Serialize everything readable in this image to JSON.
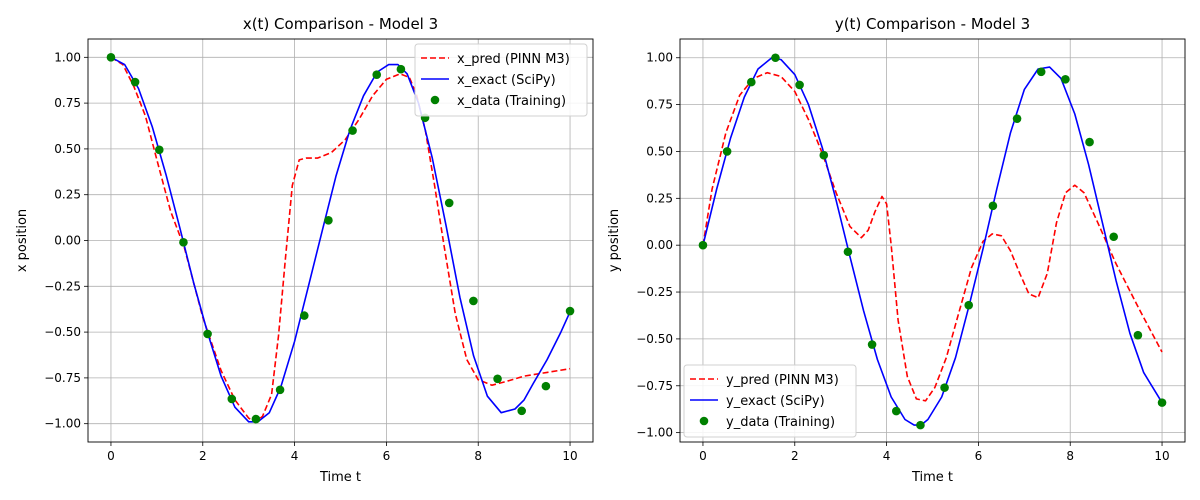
{
  "colors": {
    "pred": "#ff0000",
    "exact": "#0000ff",
    "data": "#008000",
    "grid": "#b0b0b0"
  },
  "chart_data": [
    {
      "type": "line",
      "title": "x(t) Comparison - Model 3",
      "xlabel": "Time t",
      "ylabel": "x position",
      "xlim": [
        -0.5,
        10.5
      ],
      "ylim": [
        -1.1,
        1.1
      ],
      "xticks": [
        0,
        2,
        4,
        6,
        8,
        10
      ],
      "yticks": [
        1.0,
        0.75,
        0.5,
        0.25,
        0.0,
        -0.25,
        -0.5,
        -0.75,
        -1.0
      ],
      "ytick_labels": [
        "1.00",
        "0.75",
        "0.50",
        "0.25",
        "0.00",
        "−0.25",
        "−0.50",
        "−0.75",
        "−1.00"
      ],
      "grid": true,
      "legend_position": "top-right",
      "series": [
        {
          "name": "x_pred (PINN M3)",
          "style": "dashed",
          "color_key": "pred",
          "x": [
            0,
            0.26,
            0.5,
            0.75,
            1.0,
            1.3,
            1.6,
            2.0,
            2.4,
            2.7,
            3.0,
            3.15,
            3.3,
            3.5,
            3.65,
            3.8,
            3.95,
            4.1,
            4.25,
            4.5,
            4.8,
            5.1,
            5.4,
            5.7,
            6.0,
            6.3,
            6.5,
            6.65,
            6.85,
            7.05,
            7.25,
            7.5,
            7.75,
            8.0,
            8.3,
            8.6,
            9.0,
            9.5,
            10.0
          ],
          "y": [
            1.0,
            0.96,
            0.84,
            0.68,
            0.44,
            0.16,
            -0.04,
            -0.42,
            -0.71,
            -0.87,
            -0.97,
            -0.99,
            -0.96,
            -0.84,
            -0.52,
            -0.1,
            0.3,
            0.44,
            0.45,
            0.45,
            0.48,
            0.55,
            0.66,
            0.79,
            0.88,
            0.91,
            0.89,
            0.8,
            0.6,
            0.3,
            -0.02,
            -0.4,
            -0.65,
            -0.76,
            -0.79,
            -0.77,
            -0.74,
            -0.72,
            -0.7
          ]
        },
        {
          "name": "x_exact (SciPy)",
          "style": "solid",
          "color_key": "exact",
          "x": [
            0,
            0.3,
            0.6,
            0.9,
            1.2,
            1.5,
            1.8,
            2.1,
            2.4,
            2.7,
            3.0,
            3.2,
            3.45,
            3.7,
            4.0,
            4.3,
            4.6,
            4.9,
            5.2,
            5.5,
            5.8,
            6.05,
            6.25,
            6.45,
            6.7,
            7.0,
            7.3,
            7.6,
            7.9,
            8.2,
            8.5,
            8.8,
            9.0,
            9.2,
            9.5,
            9.8,
            10.0
          ],
          "y": [
            1.0,
            0.96,
            0.83,
            0.62,
            0.36,
            0.07,
            -0.23,
            -0.5,
            -0.74,
            -0.91,
            -0.99,
            -0.99,
            -0.94,
            -0.8,
            -0.55,
            -0.25,
            0.05,
            0.35,
            0.6,
            0.79,
            0.92,
            0.96,
            0.96,
            0.91,
            0.75,
            0.45,
            0.08,
            -0.31,
            -0.63,
            -0.85,
            -0.94,
            -0.92,
            -0.87,
            -0.78,
            -0.65,
            -0.5,
            -0.39
          ]
        },
        {
          "name": "x_data (Training)",
          "style": "points",
          "color_key": "data",
          "x": [
            0.0,
            0.526,
            1.053,
            1.579,
            2.105,
            2.632,
            3.158,
            3.684,
            4.211,
            4.737,
            5.263,
            5.789,
            6.316,
            6.842,
            7.368,
            7.895,
            8.421,
            8.947,
            9.474,
            10.0
          ],
          "y": [
            1.0,
            0.865,
            0.495,
            -0.01,
            -0.51,
            -0.865,
            -0.975,
            -0.815,
            -0.41,
            0.11,
            0.6,
            0.905,
            0.935,
            0.67,
            0.205,
            -0.33,
            -0.755,
            -0.93,
            -0.795,
            -0.385
          ]
        }
      ]
    },
    {
      "type": "line",
      "title": "y(t) Comparison - Model 3",
      "xlabel": "Time t",
      "ylabel": "y position",
      "xlim": [
        -0.5,
        10.5
      ],
      "ylim": [
        -1.05,
        1.1
      ],
      "xticks": [
        0,
        2,
        4,
        6,
        8,
        10
      ],
      "yticks": [
        1.0,
        0.75,
        0.5,
        0.25,
        0.0,
        -0.25,
        -0.5,
        -0.75,
        -1.0
      ],
      "ytick_labels": [
        "1.00",
        "0.75",
        "0.50",
        "0.25",
        "0.00",
        "−0.25",
        "−0.50",
        "−0.75",
        "−1.00"
      ],
      "grid": true,
      "legend_position": "bottom-left",
      "series": [
        {
          "name": "y_pred (PINN M3)",
          "style": "dashed",
          "color_key": "pred",
          "x": [
            0,
            0.2,
            0.5,
            0.8,
            1.1,
            1.4,
            1.7,
            2.0,
            2.3,
            2.6,
            2.9,
            3.2,
            3.45,
            3.6,
            3.75,
            3.9,
            4.0,
            4.1,
            4.25,
            4.45,
            4.65,
            4.85,
            5.05,
            5.3,
            5.55,
            5.85,
            6.1,
            6.3,
            6.5,
            6.7,
            6.9,
            7.1,
            7.3,
            7.5,
            7.7,
            7.9,
            8.1,
            8.3,
            8.6,
            9.0,
            9.5,
            10.0
          ],
          "y": [
            0.0,
            0.3,
            0.6,
            0.8,
            0.89,
            0.92,
            0.9,
            0.82,
            0.67,
            0.49,
            0.28,
            0.1,
            0.04,
            0.08,
            0.18,
            0.26,
            0.22,
            0.0,
            -0.4,
            -0.7,
            -0.82,
            -0.83,
            -0.76,
            -0.6,
            -0.38,
            -0.12,
            0.02,
            0.06,
            0.05,
            -0.03,
            -0.15,
            -0.26,
            -0.28,
            -0.15,
            0.12,
            0.28,
            0.32,
            0.28,
            0.12,
            -0.1,
            -0.34,
            -0.57
          ]
        },
        {
          "name": "y_exact (SciPy)",
          "style": "solid",
          "color_key": "exact",
          "x": [
            0,
            0.3,
            0.6,
            0.9,
            1.2,
            1.5,
            1.7,
            2.0,
            2.3,
            2.6,
            2.9,
            3.2,
            3.5,
            3.8,
            4.1,
            4.4,
            4.6,
            4.75,
            4.9,
            5.2,
            5.5,
            5.8,
            6.1,
            6.4,
            6.7,
            7.0,
            7.3,
            7.55,
            7.8,
            8.1,
            8.4,
            8.7,
            9.0,
            9.3,
            9.6,
            10.0
          ],
          "y": [
            0.0,
            0.3,
            0.57,
            0.79,
            0.94,
            1.0,
            0.99,
            0.91,
            0.75,
            0.52,
            0.24,
            -0.06,
            -0.35,
            -0.61,
            -0.81,
            -0.93,
            -0.96,
            -0.96,
            -0.93,
            -0.81,
            -0.6,
            -0.32,
            -0.02,
            0.3,
            0.6,
            0.83,
            0.94,
            0.95,
            0.89,
            0.7,
            0.43,
            0.12,
            -0.19,
            -0.47,
            -0.68,
            -0.84
          ]
        },
        {
          "name": "y_data (Training)",
          "style": "points",
          "color_key": "data",
          "x": [
            0.0,
            0.526,
            1.053,
            1.579,
            2.105,
            2.632,
            3.158,
            3.684,
            4.211,
            4.737,
            5.263,
            5.789,
            6.316,
            6.842,
            7.368,
            7.895,
            8.421,
            8.947,
            9.474,
            10.0
          ],
          "y": [
            0.0,
            0.5,
            0.87,
            1.0,
            0.855,
            0.48,
            -0.035,
            -0.53,
            -0.885,
            -0.96,
            -0.76,
            -0.32,
            0.21,
            0.675,
            0.925,
            0.885,
            0.55,
            0.045,
            -0.48,
            -0.84
          ]
        }
      ]
    }
  ]
}
